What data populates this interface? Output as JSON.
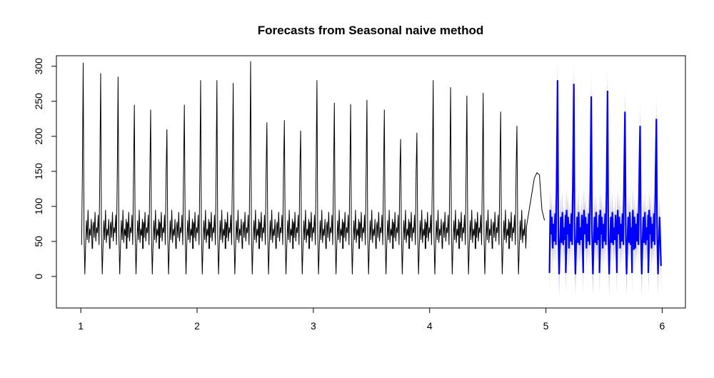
{
  "chart_data": {
    "type": "line",
    "title": "Forecasts from Seasonal naive method",
    "xlabel": "",
    "ylabel": "",
    "xlim": [
      0.79,
      6.2
    ],
    "ylim": [
      -45,
      315
    ],
    "xticks": [
      1,
      2,
      3,
      4,
      5,
      6
    ],
    "yticks": [
      0,
      50,
      100,
      150,
      200,
      250,
      300
    ],
    "grid": false,
    "legend": "none",
    "period_length": 0.1667,
    "series": [
      {
        "role": "observed",
        "color": "#000000",
        "x_start": 1.0,
        "x_end": 4.99,
        "peaks": [
          {
            "x": 1.09,
            "y": 305
          },
          {
            "x": 1.24,
            "y": 290
          },
          {
            "x": 1.39,
            "y": 285
          },
          {
            "x": 1.53,
            "y": 245
          },
          {
            "x": 1.67,
            "y": 238
          },
          {
            "x": 1.81,
            "y": 210
          },
          {
            "x": 1.96,
            "y": 245
          },
          {
            "x": 2.1,
            "y": 280
          },
          {
            "x": 2.24,
            "y": 280
          },
          {
            "x": 2.38,
            "y": 276
          },
          {
            "x": 2.53,
            "y": 307
          },
          {
            "x": 2.67,
            "y": 220
          },
          {
            "x": 2.82,
            "y": 223
          },
          {
            "x": 2.96,
            "y": 208
          },
          {
            "x": 3.1,
            "y": 280
          },
          {
            "x": 3.25,
            "y": 248
          },
          {
            "x": 3.39,
            "y": 246
          },
          {
            "x": 3.53,
            "y": 252
          },
          {
            "x": 3.68,
            "y": 238
          },
          {
            "x": 3.82,
            "y": 196
          },
          {
            "x": 3.96,
            "y": 205
          },
          {
            "x": 4.1,
            "y": 280
          },
          {
            "x": 4.25,
            "y": 270
          },
          {
            "x": 4.39,
            "y": 258
          },
          {
            "x": 4.53,
            "y": 262
          },
          {
            "x": 4.68,
            "y": 235
          },
          {
            "x": 4.82,
            "y": 215
          }
        ],
        "end_values": [
          140,
          148,
          145,
          95,
          80
        ]
      },
      {
        "role": "forecast",
        "color": "#0000ff",
        "x_start": 5.0,
        "x_end": 5.99,
        "peaks": [
          {
            "x": 5.1,
            "y": 280
          },
          {
            "x": 5.24,
            "y": 275
          },
          {
            "x": 5.39,
            "y": 257
          },
          {
            "x": 5.53,
            "y": 265
          },
          {
            "x": 5.68,
            "y": 235
          },
          {
            "x": 5.81,
            "y": 215
          },
          {
            "x": 5.95,
            "y": 225
          }
        ],
        "interval_halfwidth": 30,
        "interval_color": "#bebed9"
      }
    ]
  }
}
